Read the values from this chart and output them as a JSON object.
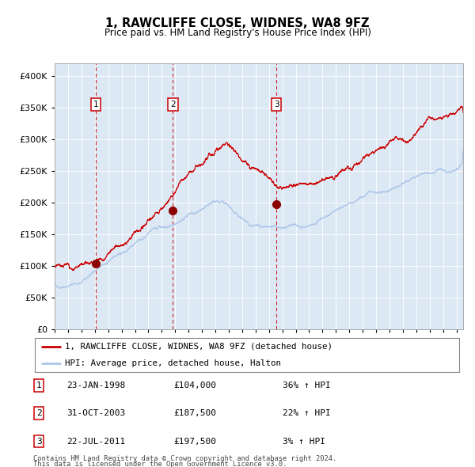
{
  "title": "1, RAWCLIFFE CLOSE, WIDNES, WA8 9FZ",
  "subtitle": "Price paid vs. HM Land Registry's House Price Index (HPI)",
  "legend_line1": "1, RAWCLIFFE CLOSE, WIDNES, WA8 9FZ (detached house)",
  "legend_line2": "HPI: Average price, detached house, Halton",
  "transactions": [
    {
      "num": 1,
      "date_label": "23-JAN-1998",
      "price": 104000,
      "pct": "36%",
      "dir": "↑",
      "x_year": 1998.06
    },
    {
      "num": 2,
      "date_label": "31-OCT-2003",
      "price": 187500,
      "pct": "22%",
      "dir": "↑",
      "x_year": 2003.83
    },
    {
      "num": 3,
      "date_label": "22-JUL-2011",
      "price": 197500,
      "pct": "3%",
      "dir": "↑",
      "x_year": 2011.55
    }
  ],
  "table_rows": [
    [
      1,
      "23-JAN-1998",
      "£104,000",
      "36% ↑ HPI"
    ],
    [
      2,
      "31-OCT-2003",
      "£187,500",
      "22% ↑ HPI"
    ],
    [
      3,
      "22-JUL-2011",
      "£197,500",
      "3% ↑ HPI"
    ]
  ],
  "footer1": "Contains HM Land Registry data © Crown copyright and database right 2024.",
  "footer2": "This data is licensed under the Open Government Licence v3.0.",
  "hpi_color": "#aec6e8",
  "price_color": "#cc0000",
  "dot_color": "#8b0000",
  "vline_color": "#cc0000",
  "plot_bg": "#dce9f5",
  "ylim": [
    0,
    420000
  ],
  "xlim_start": 1995.0,
  "xlim_end": 2025.5
}
